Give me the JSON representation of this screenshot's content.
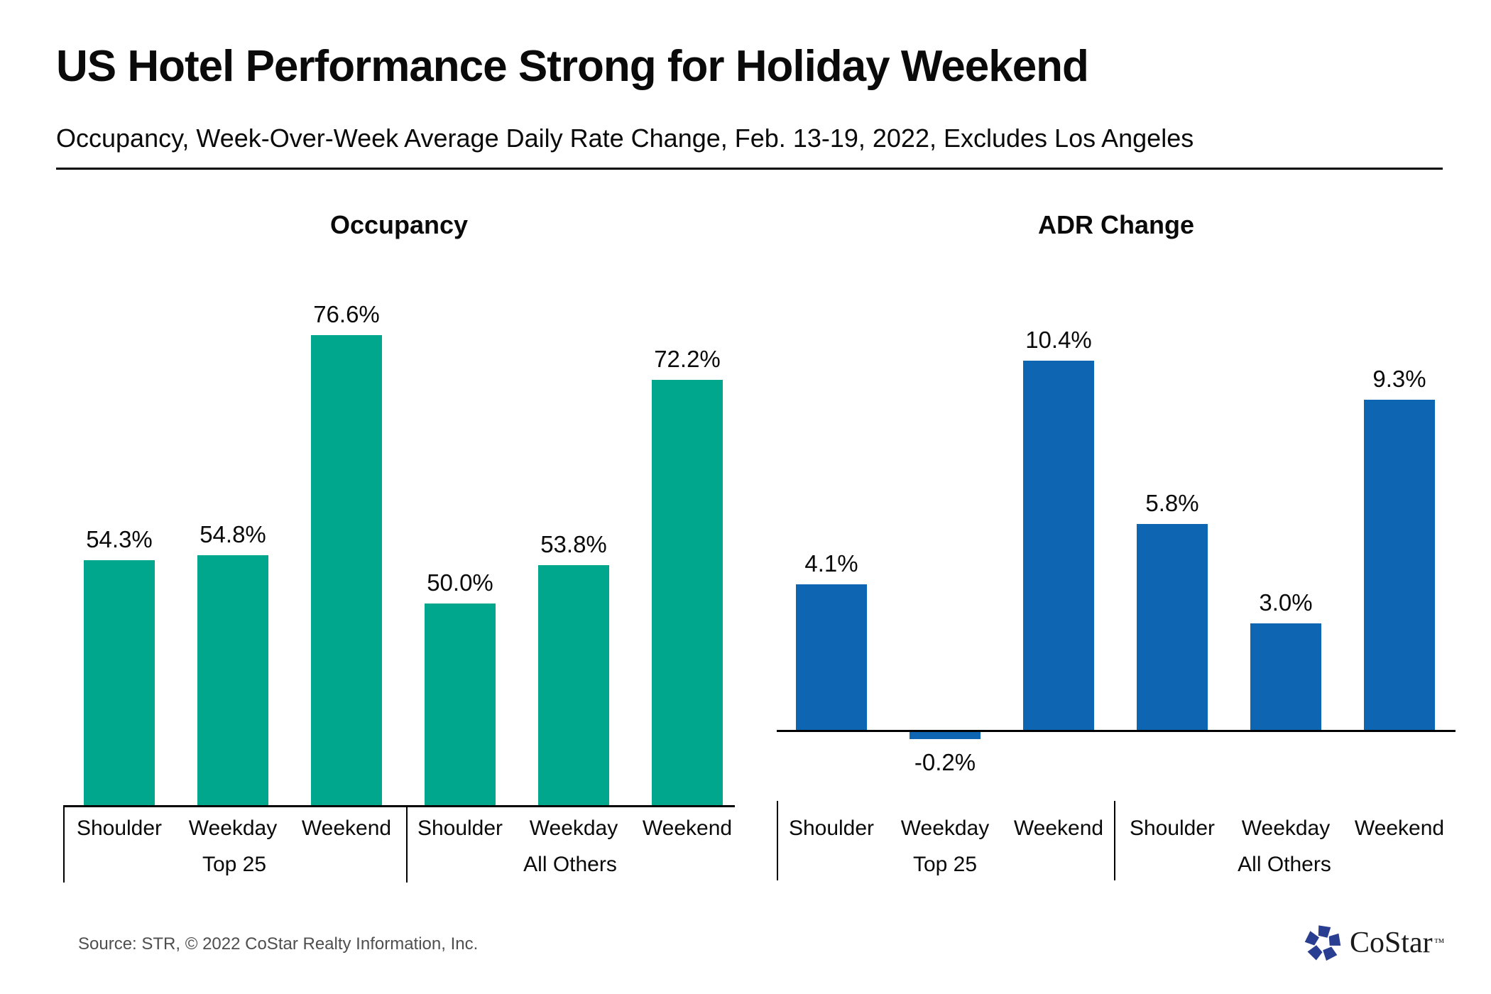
{
  "header": {
    "title": "US Hotel Performance Strong for Holiday Weekend",
    "subtitle": "Occupancy, Week-Over-Week Average Daily Rate Change, Feb. 13-19, 2022, Excludes Los Angeles"
  },
  "chart_data": [
    {
      "type": "bar",
      "title": "Occupancy",
      "unit": "%",
      "bar_color": "#00A78D",
      "categories": [
        "Shoulder",
        "Weekday",
        "Weekend"
      ],
      "group_labels": [
        "Top 25",
        "All Others"
      ],
      "series": [
        {
          "name": "Top 25",
          "values": [
            54.3,
            54.8,
            76.6
          ]
        },
        {
          "name": "All Others",
          "values": [
            50.0,
            53.8,
            72.2
          ]
        }
      ],
      "value_labels": [
        "54.3%",
        "54.8%",
        "76.6%",
        "50.0%",
        "53.8%",
        "72.2%"
      ],
      "ylim": [
        30,
        82
      ],
      "grid": false,
      "legend": false,
      "value_axis_hidden": true
    },
    {
      "type": "bar",
      "title": "ADR Change",
      "unit": "%",
      "bar_color": "#0E66B2",
      "categories": [
        "Shoulder",
        "Weekday",
        "Weekend"
      ],
      "group_labels": [
        "Top 25",
        "All Others"
      ],
      "series": [
        {
          "name": "Top 25",
          "values": [
            4.1,
            -0.2,
            10.4
          ]
        },
        {
          "name": "All Others",
          "values": [
            5.8,
            3.0,
            9.3
          ]
        }
      ],
      "value_labels": [
        "4.1%",
        "-0.2%",
        "10.4%",
        "5.8%",
        "3.0%",
        "9.3%"
      ],
      "ylim": [
        -1,
        11.6
      ],
      "grid": false,
      "legend": false,
      "value_axis_hidden": true
    }
  ],
  "footer": {
    "source": "Source: STR, © 2022  CoStar Realty Information, Inc.",
    "logo_text": "CoStar",
    "logo_tm": "™"
  },
  "colors": {
    "occupancy_bar": "#00A78D",
    "adr_bar": "#0E66B2",
    "axis": "#000000",
    "source_text": "#4F4F4F",
    "logo_navy": "#293E90"
  }
}
